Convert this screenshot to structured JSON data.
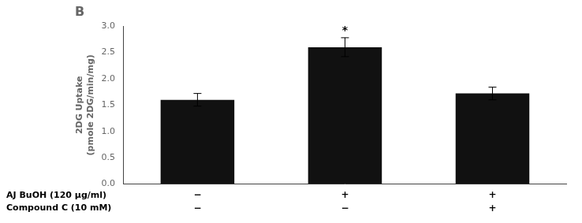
{
  "chart_data": {
    "type": "bar",
    "title": "B",
    "categories": [
      [
        "−",
        "−"
      ],
      [
        "+",
        "−"
      ],
      [
        "+",
        "+"
      ]
    ],
    "row_labels": [
      "AJ BuOH (120 μg/ml)",
      "Compound C (10 mM)"
    ],
    "values": [
      1.6,
      2.6,
      1.72
    ],
    "errors": [
      0.12,
      0.18,
      0.12
    ],
    "color": "#111111",
    "ylabel": [
      "2DG Uptake",
      "(pmole 2DG/min/mg)"
    ],
    "ylim": [
      0,
      3.0
    ],
    "yticks": [
      {
        "value": 0.0,
        "label": "0.0"
      },
      {
        "value": 0.5,
        "label": "0.5"
      },
      {
        "value": 1.0,
        "label": "1.0"
      },
      {
        "value": 1.5,
        "label": "1.5"
      },
      {
        "value": 2.0,
        "label": "2.0"
      },
      {
        "value": 2.5,
        "label": "2.5"
      },
      {
        "value": 3.0,
        "label": "3.0"
      }
    ],
    "annotations": [
      {
        "text": "*",
        "x": 1
      }
    ],
    "grid": false
  }
}
